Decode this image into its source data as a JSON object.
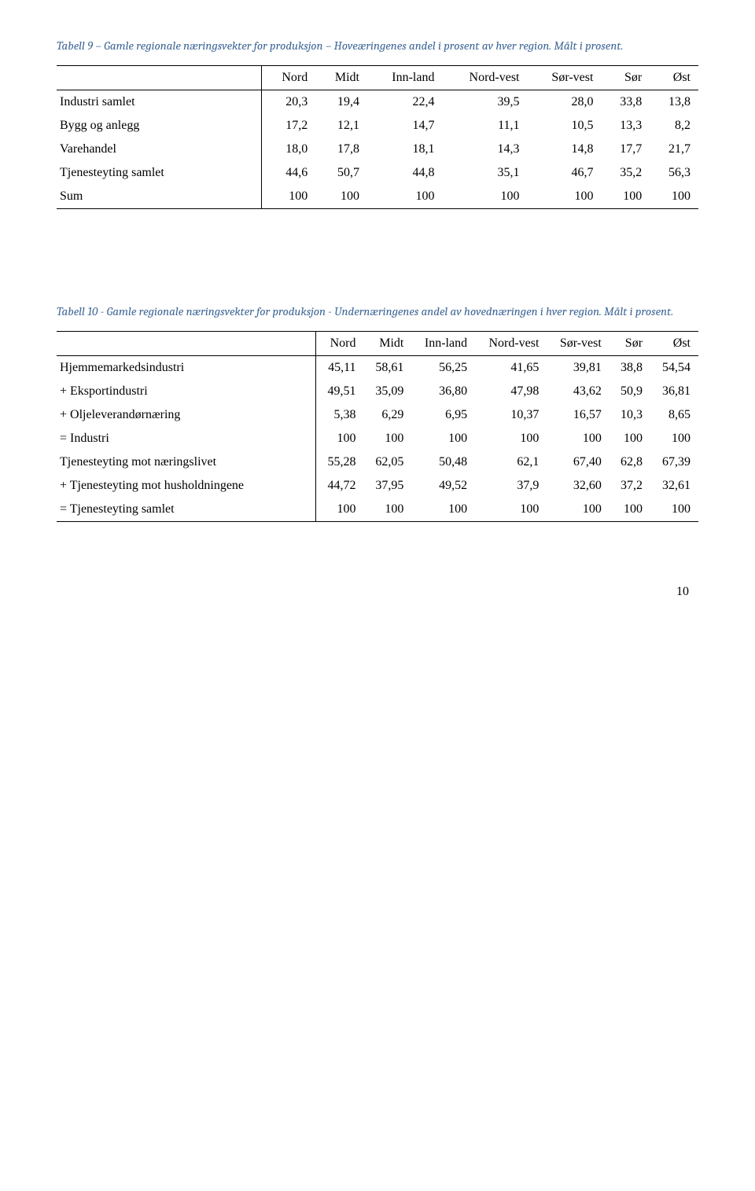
{
  "table1": {
    "title": "Tabell 9 – Gamle regionale næringsvekter for produksjon – Hoveæringenes andel i prosent av hver region. Målt i prosent.",
    "columns": [
      "Nord",
      "Midt",
      "Inn-land",
      "Nord-vest",
      "Sør-vest",
      "Sør",
      "Øst"
    ],
    "rows": [
      {
        "label": "Industri samlet",
        "values": [
          "20,3",
          "19,4",
          "22,4",
          "39,5",
          "28,0",
          "33,8",
          "13,8"
        ]
      },
      {
        "label": "Bygg og anlegg",
        "values": [
          "17,2",
          "12,1",
          "14,7",
          "11,1",
          "10,5",
          "13,3",
          "8,2"
        ]
      },
      {
        "label": "Varehandel",
        "values": [
          "18,0",
          "17,8",
          "18,1",
          "14,3",
          "14,8",
          "17,7",
          "21,7"
        ]
      },
      {
        "label": "Tjenesteyting samlet",
        "values": [
          "44,6",
          "50,7",
          "44,8",
          "35,1",
          "46,7",
          "35,2",
          "56,3"
        ]
      },
      {
        "label": "Sum",
        "values": [
          "100",
          "100",
          "100",
          "100",
          "100",
          "100",
          "100"
        ]
      }
    ]
  },
  "table2": {
    "title": "Tabell 10 - Gamle regionale næringsvekter for produksjon - Undernæringenes andel av hovednæringen i hver region. Målt i prosent.",
    "columns": [
      "Nord",
      "Midt",
      "Inn-land",
      "Nord-vest",
      "Sør-vest",
      "Sør",
      "Øst"
    ],
    "rows": [
      {
        "label": "Hjemmemarkedsindustri",
        "values": [
          "45,11",
          "58,61",
          "56,25",
          "41,65",
          "39,81",
          "38,8",
          "54,54"
        ]
      },
      {
        "label": "+ Eksportindustri",
        "values": [
          "49,51",
          "35,09",
          "36,80",
          "47,98",
          "43,62",
          "50,9",
          "36,81"
        ]
      },
      {
        "label": "+ Oljeleverandørnæring",
        "values": [
          "5,38",
          "6,29",
          "6,95",
          "10,37",
          "16,57",
          "10,3",
          "8,65"
        ]
      },
      {
        "label": "= Industri",
        "values": [
          "100",
          "100",
          "100",
          "100",
          "100",
          "100",
          "100"
        ]
      },
      {
        "label": "Tjenesteyting mot næringslivet",
        "values": [
          "55,28",
          "62,05",
          "50,48",
          "62,1",
          "67,40",
          "62,8",
          "67,39"
        ]
      },
      {
        "label": "+ Tjenesteyting mot husholdningene",
        "values": [
          "44,72",
          "37,95",
          "49,52",
          "37,9",
          "32,60",
          "37,2",
          "32,61"
        ]
      },
      {
        "label": "= Tjenesteyting samlet",
        "values": [
          "100",
          "100",
          "100",
          "100",
          "100",
          "100",
          "100"
        ]
      }
    ]
  },
  "pageNumber": "10"
}
